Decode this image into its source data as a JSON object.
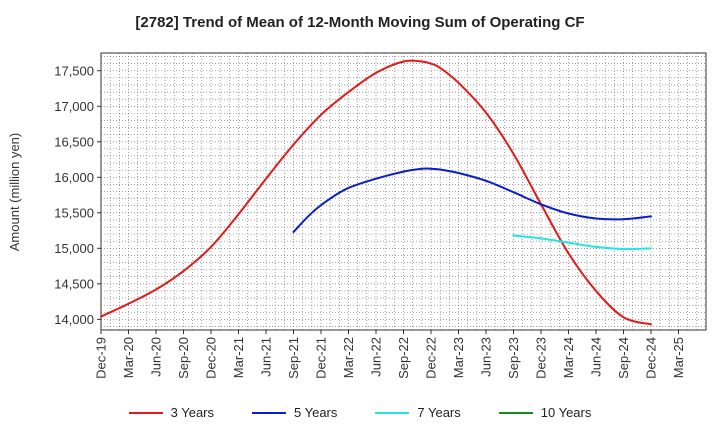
{
  "chart_data": {
    "type": "line",
    "title": "[2782]  Trend of Mean of 12-Month Moving Sum of Operating CF",
    "xlabel": "",
    "ylabel": "Amount (million yen)",
    "ylim": [
      13850,
      17750
    ],
    "yticks": [
      14000,
      14500,
      15000,
      15500,
      16000,
      16500,
      17000,
      17500
    ],
    "ytick_labels": [
      "14,000",
      "14,500",
      "15,000",
      "15,500",
      "16,000",
      "16,500",
      "17,000",
      "17,500"
    ],
    "xlim": [
      0,
      66
    ],
    "xtick_labels": [
      "Dec-19",
      "Mar-20",
      "Jun-20",
      "Sep-20",
      "Dec-20",
      "Mar-21",
      "Jun-21",
      "Sep-21",
      "Dec-21",
      "Mar-22",
      "Jun-22",
      "Sep-22",
      "Dec-22",
      "Mar-23",
      "Jun-23",
      "Sep-23",
      "Dec-23",
      "Mar-24",
      "Jun-24",
      "Sep-24",
      "Dec-24",
      "Mar-25"
    ],
    "x_unit": "months since Dec-19",
    "grid": true,
    "series": [
      {
        "name": "3 Years",
        "color": "#e31a1c",
        "x": [
          0,
          3,
          6,
          9,
          12,
          15,
          18,
          21,
          24,
          27,
          30,
          33,
          35,
          36,
          37,
          39,
          42,
          45,
          48,
          51,
          54,
          57,
          60
        ],
        "values": [
          14040,
          14220,
          14420,
          14680,
          15020,
          15480,
          15980,
          16460,
          16880,
          17200,
          17470,
          17630,
          17630,
          17600,
          17540,
          17330,
          16910,
          16330,
          15620,
          14930,
          14400,
          14030,
          13930
        ]
      },
      {
        "name": "5 Years",
        "color": "#0a1ecc",
        "x": [
          21,
          23,
          25,
          27,
          30,
          33,
          35,
          36,
          37,
          39,
          42,
          45,
          48,
          51,
          54,
          57,
          60
        ],
        "values": [
          15230,
          15500,
          15700,
          15850,
          15980,
          16080,
          16120,
          16120,
          16110,
          16060,
          15950,
          15790,
          15620,
          15490,
          15420,
          15410,
          15450
        ]
      },
      {
        "name": "7 Years",
        "color": "#22e6e6",
        "x": [
          45,
          48,
          51,
          54,
          57,
          60
        ],
        "values": [
          15180,
          15140,
          15080,
          15020,
          14990,
          15000
        ]
      },
      {
        "name": "10 Years",
        "color": "#1a8a1a",
        "x": [],
        "values": []
      }
    ]
  }
}
